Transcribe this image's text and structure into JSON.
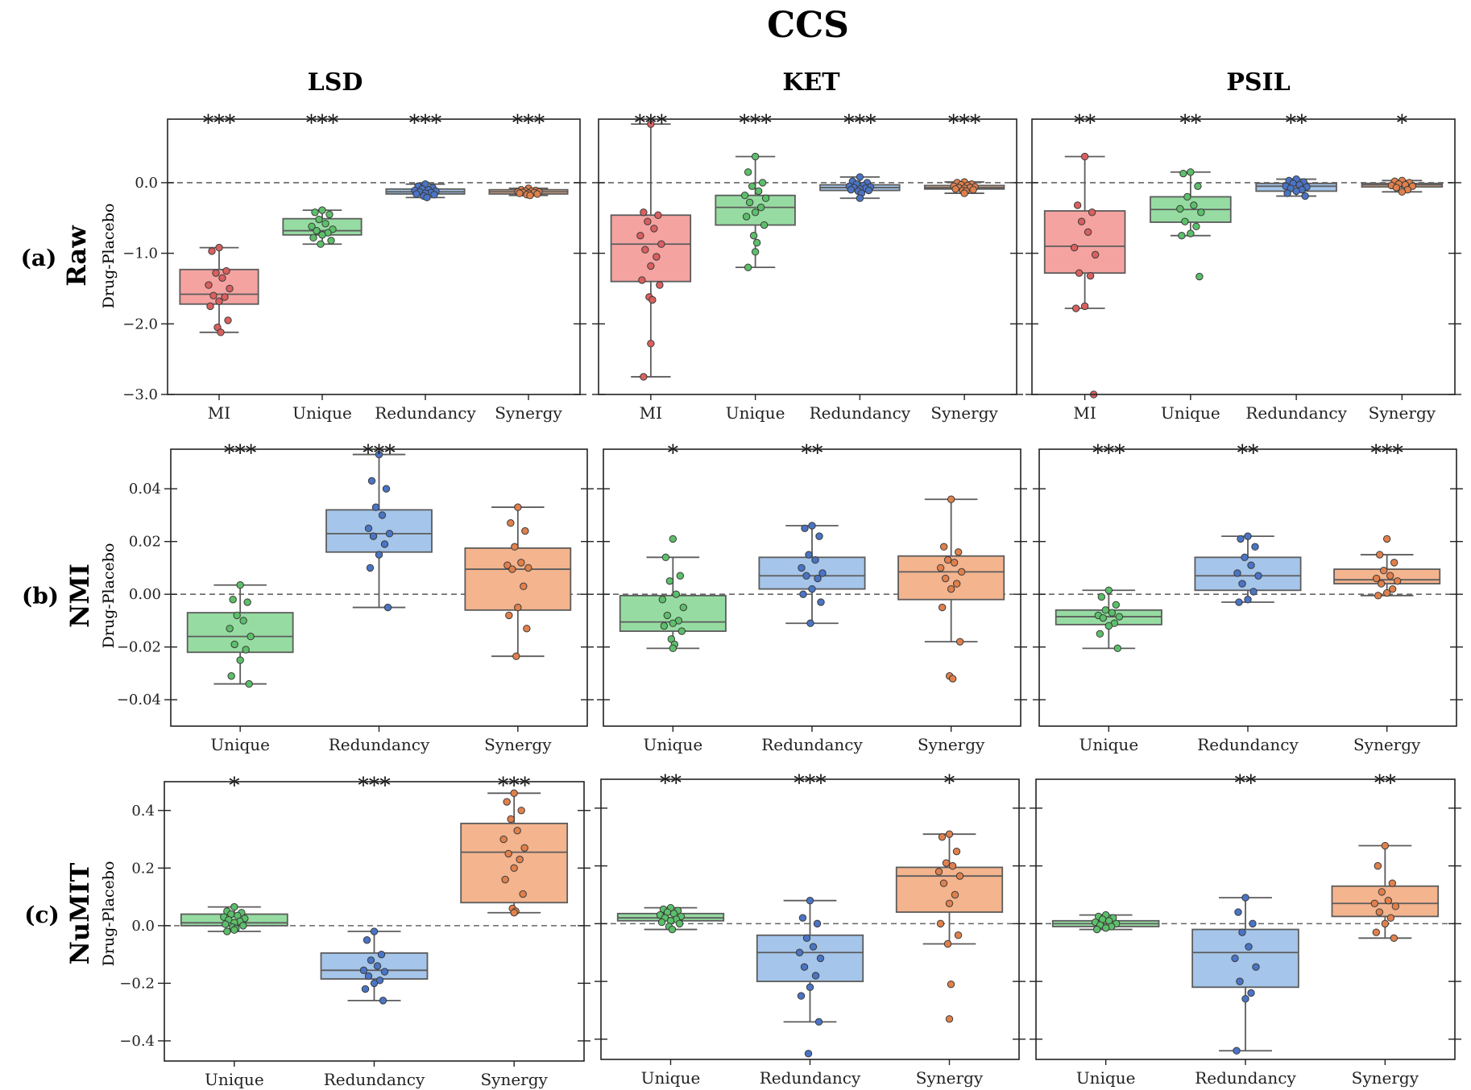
{
  "figure": {
    "title": "CCS",
    "columns": [
      "LSD",
      "KET",
      "PSIL"
    ],
    "rows": [
      {
        "tag": "(a)",
        "label": "Raw",
        "ylabel": "Drug-Placebo"
      },
      {
        "tag": "(b)",
        "label": "NMI",
        "ylabel": "Drug-Placebo"
      },
      {
        "tag": "(c)",
        "label": "NuMIT",
        "ylabel": "Drug-Placebo"
      }
    ]
  },
  "colors": {
    "MI": {
      "fill": "#f4a3a1",
      "dot": "#d9605f"
    },
    "Unique": {
      "fill": "#96dca2",
      "dot": "#5cbf6a"
    },
    "Redundancy": {
      "fill": "#a5c5ea",
      "dot": "#4a74c5"
    },
    "Synergy": {
      "fill": "#f3b48e",
      "dot": "#e0804c"
    },
    "box_edge": "#5c5c5c",
    "zero_line": "#666666"
  },
  "chart_data": [
    {
      "type": "box",
      "row": 0,
      "col": 0,
      "drug": "LSD",
      "measure": "Raw",
      "ylabel": "Drug-Placebo",
      "ylim": [
        -3.0,
        0.9
      ],
      "yticks": [
        0.0,
        -1.0,
        -2.0,
        -3.0
      ],
      "ytick_labels": [
        "0.0",
        "−1.0",
        "−2.0",
        "−3.0"
      ],
      "categories": [
        "MI",
        "Unique",
        "Redundancy",
        "Synergy"
      ],
      "boxes": [
        {
          "q1": -1.72,
          "median": -1.58,
          "q3": -1.23,
          "whislo": -2.12,
          "whishi": -0.92,
          "fliers": []
        },
        {
          "q1": -0.74,
          "median": -0.68,
          "q3": -0.51,
          "whislo": -0.87,
          "whishi": -0.39,
          "fliers": []
        },
        {
          "q1": -0.16,
          "median": -0.13,
          "q3": -0.09,
          "whislo": -0.21,
          "whishi": -0.02,
          "fliers": []
        },
        {
          "q1": -0.16,
          "median": -0.13,
          "q3": -0.1,
          "whislo": -0.18,
          "whishi": -0.08,
          "fliers": []
        }
      ],
      "points": [
        [
          -0.92,
          -0.97,
          -1.25,
          -1.28,
          -1.35,
          -1.45,
          -1.5,
          -1.6,
          -1.62,
          -1.68,
          -1.75,
          -1.95,
          -2.05,
          -2.12
        ],
        [
          -0.39,
          -0.42,
          -0.45,
          -0.52,
          -0.58,
          -0.62,
          -0.66,
          -0.68,
          -0.71,
          -0.74,
          -0.78,
          -0.82,
          -0.87
        ],
        [
          -0.02,
          -0.05,
          -0.07,
          -0.09,
          -0.1,
          -0.11,
          -0.12,
          -0.13,
          -0.14,
          -0.15,
          -0.16,
          -0.17,
          -0.19,
          -0.21
        ],
        [
          -0.08,
          -0.1,
          -0.11,
          -0.12,
          -0.12,
          -0.13,
          -0.13,
          -0.14,
          -0.14,
          -0.15,
          -0.15,
          -0.16,
          -0.17,
          -0.18
        ]
      ],
      "significance": [
        "***",
        "***",
        "***",
        "***"
      ]
    },
    {
      "type": "box",
      "row": 0,
      "col": 1,
      "drug": "KET",
      "measure": "Raw",
      "ylabel": "Drug-Placebo",
      "ylim": [
        -3.0,
        0.9
      ],
      "yticks": [
        0.0,
        -1.0,
        -2.0,
        -3.0
      ],
      "ytick_labels": [
        "0.0",
        "−1.0",
        "−2.0",
        "−3.0"
      ],
      "categories": [
        "MI",
        "Unique",
        "Redundancy",
        "Synergy"
      ],
      "boxes": [
        {
          "q1": -1.4,
          "median": -0.87,
          "q3": -0.46,
          "whislo": -2.75,
          "whishi": 0.83,
          "fliers": []
        },
        {
          "q1": -0.6,
          "median": -0.35,
          "q3": -0.18,
          "whislo": -1.2,
          "whishi": 0.37,
          "fliers": []
        },
        {
          "q1": -0.11,
          "median": -0.07,
          "q3": -0.03,
          "whislo": -0.22,
          "whishi": 0.08,
          "fliers": []
        },
        {
          "q1": -0.09,
          "median": -0.07,
          "q3": -0.04,
          "whislo": -0.15,
          "whishi": 0.01,
          "fliers": []
        }
      ],
      "points": [
        [
          0.83,
          -0.42,
          -0.46,
          -0.55,
          -0.65,
          -0.75,
          -0.87,
          -0.95,
          -1.05,
          -1.18,
          -1.38,
          -1.45,
          -1.62,
          -1.66,
          -2.28,
          -2.75
        ],
        [
          0.37,
          0.15,
          0.0,
          -0.05,
          -0.12,
          -0.18,
          -0.22,
          -0.28,
          -0.35,
          -0.42,
          -0.48,
          -0.6,
          -0.75,
          -0.85,
          -0.98,
          -1.2
        ],
        [
          0.08,
          0.02,
          0.0,
          -0.02,
          -0.04,
          -0.05,
          -0.06,
          -0.07,
          -0.08,
          -0.09,
          -0.1,
          -0.11,
          -0.12,
          -0.15,
          -0.22
        ],
        [
          0.01,
          0.0,
          -0.02,
          -0.03,
          -0.04,
          -0.05,
          -0.06,
          -0.07,
          -0.07,
          -0.08,
          -0.09,
          -0.1,
          -0.11,
          -0.12,
          -0.15
        ]
      ],
      "significance": [
        "***",
        "***",
        "***",
        "***"
      ]
    },
    {
      "type": "box",
      "row": 0,
      "col": 2,
      "drug": "PSIL",
      "measure": "Raw",
      "ylabel": "Drug-Placebo",
      "ylim": [
        -3.0,
        0.9
      ],
      "yticks": [
        0.0,
        -1.0,
        -2.0,
        -3.0
      ],
      "ytick_labels": [
        "0.0",
        "−1.0",
        "−2.0",
        "−3.0"
      ],
      "categories": [
        "MI",
        "Unique",
        "Redundancy",
        "Synergy"
      ],
      "boxes": [
        {
          "q1": -1.28,
          "median": -0.9,
          "q3": -0.4,
          "whislo": -1.78,
          "whishi": 0.37,
          "fliers": [
            -3.0
          ]
        },
        {
          "q1": -0.56,
          "median": -0.38,
          "q3": -0.2,
          "whislo": -0.75,
          "whishi": 0.15,
          "fliers": [
            -1.33
          ]
        },
        {
          "q1": -0.12,
          "median": -0.05,
          "q3": -0.01,
          "whislo": -0.19,
          "whishi": 0.05,
          "fliers": []
        },
        {
          "q1": -0.06,
          "median": -0.03,
          "q3": -0.01,
          "whislo": -0.13,
          "whishi": 0.03,
          "fliers": []
        }
      ],
      "points": [
        [
          0.37,
          -0.32,
          -0.42,
          -0.55,
          -0.7,
          -0.92,
          -1.02,
          -1.28,
          -1.32,
          -1.75,
          -1.78,
          -3.0
        ],
        [
          0.15,
          0.13,
          -0.05,
          -0.2,
          -0.32,
          -0.37,
          -0.42,
          -0.55,
          -0.62,
          -0.72,
          -0.75,
          -1.33
        ],
        [
          0.05,
          0.03,
          0.01,
          -0.01,
          -0.03,
          -0.05,
          -0.06,
          -0.08,
          -0.1,
          -0.12,
          -0.15,
          -0.19
        ],
        [
          0.03,
          0.02,
          0.0,
          -0.02,
          -0.03,
          -0.04,
          -0.05,
          -0.07,
          -0.1,
          -0.13
        ]
      ],
      "significance": [
        "**",
        "**",
        "**",
        "*"
      ]
    },
    {
      "type": "box",
      "row": 1,
      "col": 0,
      "drug": "LSD",
      "measure": "NMI",
      "ylabel": "Drug-Placebo",
      "ylim": [
        -0.05,
        0.055
      ],
      "yticks": [
        0.04,
        0.02,
        0.0,
        -0.02,
        -0.04
      ],
      "ytick_labels": [
        "0.04",
        "0.02",
        "0.00",
        "−0.02",
        "−0.04"
      ],
      "categories": [
        "Unique",
        "Redundancy",
        "Synergy"
      ],
      "boxes": [
        {
          "q1": -0.022,
          "median": -0.016,
          "q3": -0.007,
          "whislo": -0.034,
          "whishi": 0.0035,
          "fliers": []
        },
        {
          "q1": 0.016,
          "median": 0.023,
          "q3": 0.032,
          "whislo": -0.005,
          "whishi": 0.053,
          "fliers": []
        },
        {
          "q1": -0.006,
          "median": 0.0095,
          "q3": 0.0175,
          "whislo": -0.0235,
          "whishi": 0.033,
          "fliers": []
        }
      ],
      "points": [
        [
          0.0035,
          -0.002,
          -0.003,
          -0.008,
          -0.01,
          -0.013,
          -0.016,
          -0.019,
          -0.021,
          -0.025,
          -0.031,
          -0.034
        ],
        [
          0.053,
          0.043,
          0.04,
          0.033,
          0.03,
          0.025,
          0.023,
          0.022,
          0.019,
          0.015,
          0.01,
          -0.005
        ],
        [
          0.033,
          0.027,
          0.024,
          0.018,
          0.012,
          0.011,
          0.01,
          0.0095,
          0.003,
          -0.005,
          -0.008,
          -0.013,
          -0.0235
        ]
      ],
      "significance": [
        "***",
        "***",
        ""
      ]
    },
    {
      "type": "box",
      "row": 1,
      "col": 1,
      "drug": "KET",
      "measure": "NMI",
      "ylabel": "Drug-Placebo",
      "ylim": [
        -0.05,
        0.055
      ],
      "yticks": [
        0.04,
        0.02,
        0.0,
        -0.02,
        -0.04
      ],
      "ytick_labels": [
        "0.04",
        "0.02",
        "0.00",
        "−0.02",
        "−0.04"
      ],
      "categories": [
        "Unique",
        "Redundancy",
        "Synergy"
      ],
      "boxes": [
        {
          "q1": -0.014,
          "median": -0.0105,
          "q3": -0.0005,
          "whislo": -0.0205,
          "whishi": 0.014,
          "fliers": [
            0.021
          ]
        },
        {
          "q1": 0.002,
          "median": 0.007,
          "q3": 0.014,
          "whislo": -0.011,
          "whishi": 0.026,
          "fliers": []
        },
        {
          "q1": -0.002,
          "median": 0.0085,
          "q3": 0.0145,
          "whislo": -0.018,
          "whishi": 0.036,
          "fliers": [
            -0.031,
            -0.032
          ]
        }
      ],
      "points": [
        [
          0.021,
          0.014,
          0.007,
          0.005,
          0.0,
          -0.002,
          -0.005,
          -0.008,
          -0.01,
          -0.011,
          -0.012,
          -0.014,
          -0.017,
          -0.019,
          -0.0205
        ],
        [
          0.026,
          0.025,
          0.022,
          0.015,
          0.013,
          0.01,
          0.008,
          0.007,
          0.006,
          0.002,
          0.0,
          -0.003,
          -0.011
        ],
        [
          0.036,
          0.018,
          0.016,
          0.013,
          0.012,
          0.01,
          0.0085,
          0.006,
          0.004,
          0.002,
          -0.005,
          -0.018,
          -0.031,
          -0.032
        ]
      ],
      "significance": [
        "*",
        "**",
        ""
      ]
    },
    {
      "type": "box",
      "row": 1,
      "col": 2,
      "drug": "PSIL",
      "measure": "NMI",
      "ylabel": "Drug-Placebo",
      "ylim": [
        -0.05,
        0.055
      ],
      "yticks": [
        0.04,
        0.02,
        0.0,
        -0.02,
        -0.04
      ],
      "ytick_labels": [
        "0.04",
        "0.02",
        "0.00",
        "−0.02",
        "−0.04"
      ],
      "categories": [
        "Unique",
        "Redundancy",
        "Synergy"
      ],
      "boxes": [
        {
          "q1": -0.0115,
          "median": -0.0085,
          "q3": -0.006,
          "whislo": -0.0205,
          "whishi": 0.0015,
          "fliers": []
        },
        {
          "q1": 0.0015,
          "median": 0.007,
          "q3": 0.014,
          "whislo": -0.003,
          "whishi": 0.022,
          "fliers": []
        },
        {
          "q1": 0.004,
          "median": 0.0055,
          "q3": 0.0095,
          "whislo": -0.0005,
          "whishi": 0.015,
          "fliers": [
            0.021
          ]
        }
      ],
      "points": [
        [
          0.0015,
          -0.001,
          -0.004,
          -0.006,
          -0.007,
          -0.008,
          -0.0085,
          -0.009,
          -0.011,
          -0.012,
          -0.015,
          -0.0205
        ],
        [
          0.022,
          0.021,
          0.018,
          0.014,
          0.011,
          0.008,
          0.007,
          0.004,
          0.001,
          -0.002,
          -0.003
        ],
        [
          0.021,
          0.015,
          0.012,
          0.009,
          0.007,
          0.006,
          0.005,
          0.004,
          0.002,
          0.0005,
          -0.0005
        ]
      ],
      "significance": [
        "***",
        "**",
        "***"
      ]
    },
    {
      "type": "box",
      "row": 2,
      "col": 0,
      "drug": "LSD",
      "measure": "NuMIT",
      "ylabel": "Drug-Placebo",
      "ylim": [
        -0.47,
        0.5
      ],
      "yticks": [
        0.4,
        0.2,
        0.0,
        -0.2,
        -0.4
      ],
      "ytick_labels": [
        "0.4",
        "0.2",
        "0.0",
        "−0.2",
        "−0.4"
      ],
      "categories": [
        "Unique",
        "Redundancy",
        "Synergy"
      ],
      "boxes": [
        {
          "q1": 0.0,
          "median": 0.01,
          "q3": 0.04,
          "whislo": -0.02,
          "whishi": 0.065,
          "fliers": []
        },
        {
          "q1": -0.185,
          "median": -0.155,
          "q3": -0.095,
          "whislo": -0.26,
          "whishi": -0.02,
          "fliers": []
        },
        {
          "q1": 0.08,
          "median": 0.255,
          "q3": 0.355,
          "whislo": 0.045,
          "whishi": 0.46,
          "fliers": []
        }
      ],
      "points": [
        [
          0.065,
          0.05,
          0.045,
          0.04,
          0.035,
          0.03,
          0.025,
          0.02,
          0.015,
          0.01,
          0.005,
          0.0,
          -0.005,
          -0.01,
          -0.015,
          -0.02
        ],
        [
          -0.02,
          -0.05,
          -0.1,
          -0.12,
          -0.14,
          -0.155,
          -0.16,
          -0.175,
          -0.19,
          -0.2,
          -0.22,
          -0.26
        ],
        [
          0.46,
          0.43,
          0.4,
          0.37,
          0.33,
          0.3,
          0.27,
          0.25,
          0.23,
          0.2,
          0.16,
          0.11,
          0.06,
          0.05,
          0.045
        ]
      ],
      "significance": [
        "*",
        "***",
        "***"
      ]
    },
    {
      "type": "box",
      "row": 2,
      "col": 1,
      "drug": "KET",
      "measure": "NuMIT",
      "ylabel": "Drug-Placebo",
      "ylim": [
        -0.47,
        0.5
      ],
      "yticks": [
        0.4,
        0.2,
        0.0,
        -0.2,
        -0.4
      ],
      "ytick_labels": [
        "0.4",
        "0.2",
        "0.0",
        "−0.2",
        "−0.4"
      ],
      "categories": [
        "Unique",
        "Redundancy",
        "Synergy"
      ],
      "boxes": [
        {
          "q1": 0.01,
          "median": 0.02,
          "q3": 0.035,
          "whislo": -0.02,
          "whishi": 0.055,
          "fliers": []
        },
        {
          "q1": -0.2,
          "median": -0.1,
          "q3": -0.04,
          "whislo": -0.34,
          "whishi": 0.08,
          "fliers": [
            -0.45
          ]
        },
        {
          "q1": 0.04,
          "median": 0.165,
          "q3": 0.195,
          "whislo": -0.07,
          "whishi": 0.31,
          "fliers": [
            -0.21,
            -0.33
          ]
        }
      ],
      "points": [
        [
          0.055,
          0.05,
          0.045,
          0.04,
          0.035,
          0.03,
          0.025,
          0.02,
          0.015,
          0.01,
          0.005,
          0.0,
          -0.01,
          -0.02
        ],
        [
          0.08,
          0.02,
          0.0,
          -0.05,
          -0.08,
          -0.1,
          -0.12,
          -0.15,
          -0.18,
          -0.22,
          -0.25,
          -0.34,
          -0.45
        ],
        [
          0.31,
          0.3,
          0.25,
          0.21,
          0.2,
          0.18,
          0.165,
          0.14,
          0.1,
          0.07,
          0.0,
          -0.04,
          -0.07,
          -0.21,
          -0.33
        ]
      ],
      "significance": [
        "**",
        "***",
        "*"
      ]
    },
    {
      "type": "box",
      "row": 2,
      "col": 2,
      "drug": "PSIL",
      "measure": "NuMIT",
      "ylabel": "Drug-Placebo",
      "ylim": [
        -0.47,
        0.5
      ],
      "yticks": [
        0.4,
        0.2,
        0.0,
        -0.2,
        -0.4
      ],
      "ytick_labels": [
        "0.4",
        "0.2",
        "0.0",
        "−0.2",
        "−0.4"
      ],
      "categories": [
        "Unique",
        "Redundancy",
        "Synergy"
      ],
      "boxes": [
        {
          "q1": -0.01,
          "median": 0.0,
          "q3": 0.01,
          "whislo": -0.02,
          "whishi": 0.03,
          "fliers": []
        },
        {
          "q1": -0.22,
          "median": -0.1,
          "q3": -0.02,
          "whislo": -0.44,
          "whishi": 0.09,
          "fliers": []
        },
        {
          "q1": 0.025,
          "median": 0.07,
          "q3": 0.13,
          "whislo": -0.05,
          "whishi": 0.27,
          "fliers": []
        }
      ],
      "points": [
        [
          0.03,
          0.025,
          0.02,
          0.015,
          0.01,
          0.005,
          0.0,
          -0.005,
          -0.01,
          -0.015,
          -0.02
        ],
        [
          0.09,
          0.04,
          0.0,
          -0.03,
          -0.08,
          -0.12,
          -0.15,
          -0.2,
          -0.24,
          -0.26,
          -0.44
        ],
        [
          0.27,
          0.2,
          0.14,
          0.11,
          0.08,
          0.07,
          0.06,
          0.04,
          0.02,
          0.0,
          -0.03,
          -0.05
        ]
      ],
      "significance": [
        "",
        "**",
        "**"
      ]
    }
  ]
}
